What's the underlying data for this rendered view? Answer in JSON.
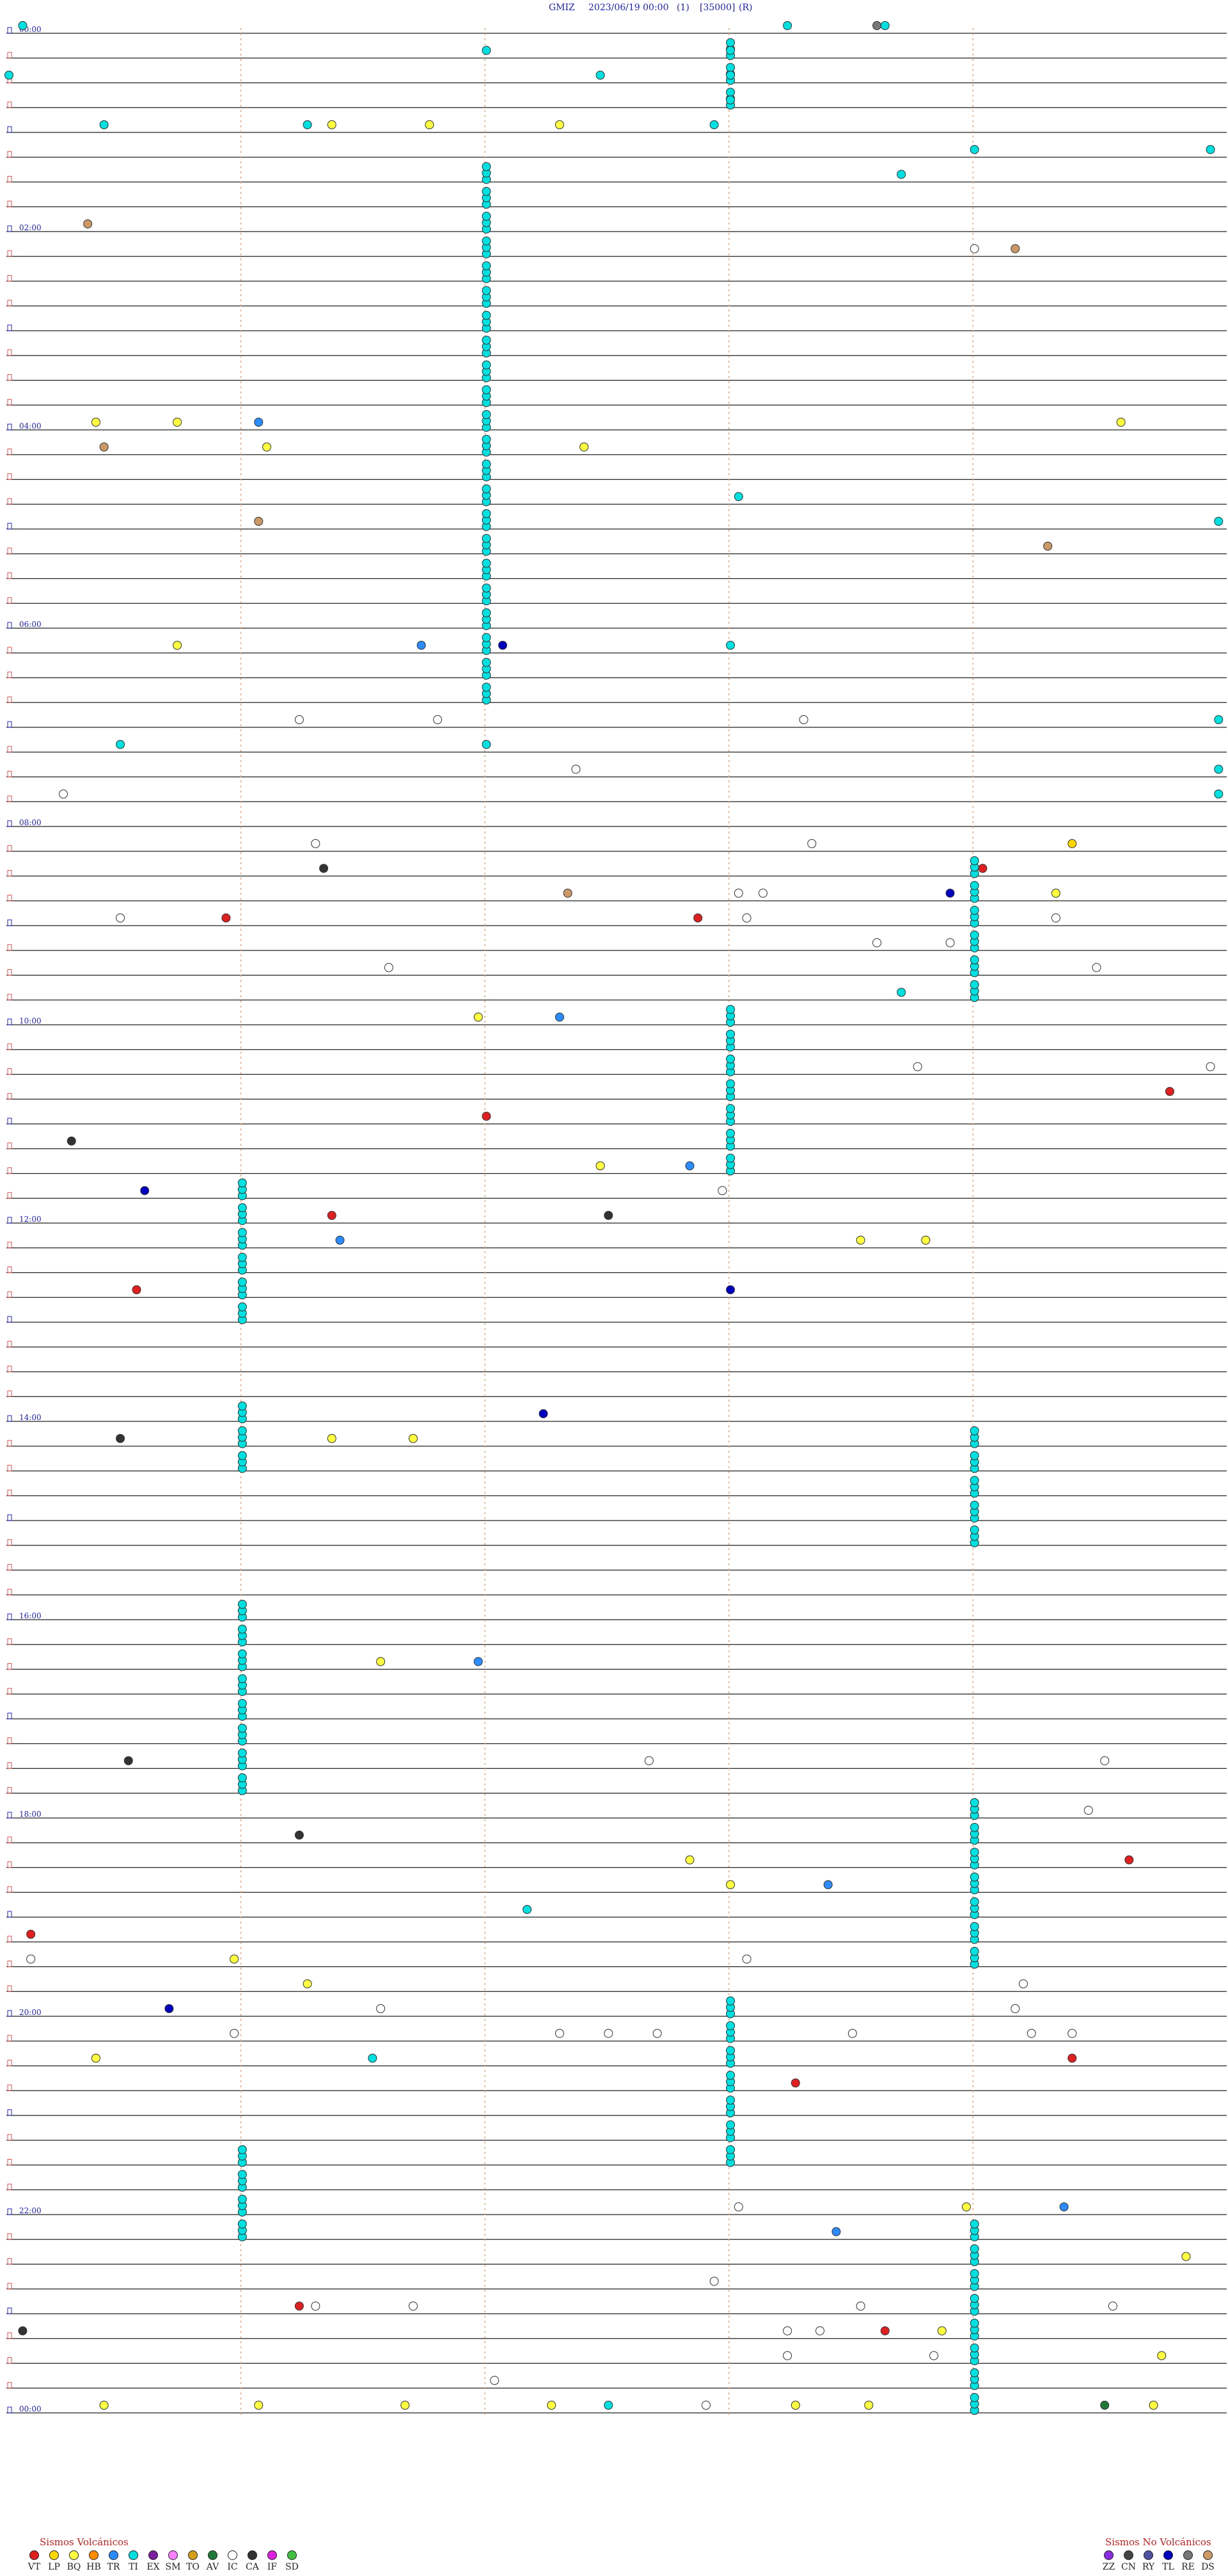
{
  "header": {
    "station": "GMIZ",
    "datetime": "2023/06/19 00:00",
    "channel": "(1)",
    "scale": "[35000]",
    "mode": "(R)"
  },
  "chart_data": {
    "type": "scatter",
    "rows_per_hour": 4,
    "total_rows": 97,
    "hour_labels": [
      {
        "row": 0,
        "text": "00:00"
      },
      {
        "row": 8,
        "text": "02:00"
      },
      {
        "row": 16,
        "text": "04:00"
      },
      {
        "row": 24,
        "text": "06:00"
      },
      {
        "row": 32,
        "text": "08:00"
      },
      {
        "row": 40,
        "text": "10:00"
      },
      {
        "row": 48,
        "text": "12:00"
      },
      {
        "row": 56,
        "text": "14:00"
      },
      {
        "row": 64,
        "text": "16:00"
      },
      {
        "row": 72,
        "text": "18:00"
      },
      {
        "row": 80,
        "text": "20:00"
      },
      {
        "row": 88,
        "text": "22:00"
      },
      {
        "row": 96,
        "text": "00:00"
      }
    ],
    "minute_markers": [
      3,
      6,
      9,
      12
    ],
    "colors": {
      "VT": "#e02020",
      "LP": "#ffd700",
      "BQ": "#ffff40",
      "HB": "#ff8c00",
      "TR": "#2a8cff",
      "TI": "#00e0e0",
      "EX": "#7a1fa0",
      "SM": "#ff80ff",
      "TO": "#d4a017",
      "AV": "#1f7a3a",
      "IC": "#ffffff",
      "CA": "#333333",
      "IF": "#e020e0",
      "SD": "#40c040",
      "ZZ": "#8a2be2",
      "CN": "#444444",
      "RY": "#5050a0",
      "TL": "#0000c0",
      "RE": "#777777",
      "DS": "#cc9966"
    },
    "events": [
      {
        "row": 0,
        "minute": 9.6,
        "type": "TI"
      },
      {
        "row": 0,
        "minute": 0.2,
        "type": "TI"
      },
      {
        "row": 0,
        "minute": 10.7,
        "type": "RE"
      },
      {
        "row": 0,
        "minute": 10.8,
        "type": "TI"
      },
      {
        "row": 1,
        "minute": 5.9,
        "type": "TI"
      },
      {
        "row": 1,
        "minute": 8.9,
        "type": "TI"
      },
      {
        "row": 2,
        "minute": 0.0,
        "type": "TI"
      },
      {
        "row": 2,
        "minute": 7.3,
        "type": "TI"
      },
      {
        "row": 2,
        "minute": 8.9,
        "type": "TI"
      },
      {
        "row": 3,
        "minute": 8.9,
        "type": "TI"
      },
      {
        "row": 4,
        "minute": 1.2,
        "type": "TI"
      },
      {
        "row": 4,
        "minute": 3.7,
        "type": "TI"
      },
      {
        "row": 4,
        "minute": 8.7,
        "type": "TI"
      },
      {
        "row": 5,
        "minute": 11.9,
        "type": "TI"
      },
      {
        "row": 5,
        "minute": 14.8,
        "type": "TI"
      },
      {
        "row": 4,
        "minute": 4.0,
        "type": "BQ"
      },
      {
        "row": 4,
        "minute": 5.2,
        "type": "BQ"
      },
      {
        "row": 4,
        "minute": 6.8,
        "type": "BQ"
      },
      {
        "row": 6,
        "minute": 11.0,
        "type": "TI"
      },
      {
        "row": 8,
        "minute": 1.0,
        "type": "DS"
      },
      {
        "row": 9,
        "minute": 11.9,
        "type": "IC"
      },
      {
        "row": 9,
        "minute": 12.4,
        "type": "DS"
      },
      {
        "row": 16,
        "minute": 1.1,
        "type": "BQ"
      },
      {
        "row": 16,
        "minute": 2.1,
        "type": "BQ"
      },
      {
        "row": 16,
        "minute": 3.1,
        "type": "TR"
      },
      {
        "row": 16,
        "minute": 13.7,
        "type": "BQ"
      },
      {
        "row": 17,
        "minute": 1.2,
        "type": "DS"
      },
      {
        "row": 17,
        "minute": 3.2,
        "type": "BQ"
      },
      {
        "row": 17,
        "minute": 7.1,
        "type": "BQ"
      },
      {
        "row": 19,
        "minute": 9.0,
        "type": "TI"
      },
      {
        "row": 20,
        "minute": 3.1,
        "type": "DS"
      },
      {
        "row": 20,
        "minute": 14.9,
        "type": "TI"
      },
      {
        "row": 21,
        "minute": 12.8,
        "type": "DS"
      },
      {
        "row": 25,
        "minute": 2.1,
        "type": "BQ"
      },
      {
        "row": 25,
        "minute": 5.1,
        "type": "TR"
      },
      {
        "row": 25,
        "minute": 6.1,
        "type": "TL"
      },
      {
        "row": 25,
        "minute": 8.9,
        "type": "TI"
      },
      {
        "row": 28,
        "minute": 3.6,
        "type": "IC"
      },
      {
        "row": 28,
        "minute": 5.3,
        "type": "IC"
      },
      {
        "row": 28,
        "minute": 9.8,
        "type": "IC"
      },
      {
        "row": 28,
        "minute": 14.9,
        "type": "TI"
      },
      {
        "row": 29,
        "minute": 1.4,
        "type": "TI"
      },
      {
        "row": 29,
        "minute": 5.9,
        "type": "TI"
      },
      {
        "row": 30,
        "minute": 7.0,
        "type": "IC"
      },
      {
        "row": 30,
        "minute": 14.9,
        "type": "TI"
      },
      {
        "row": 31,
        "minute": 0.7,
        "type": "IC"
      },
      {
        "row": 31,
        "minute": 14.9,
        "type": "TI"
      },
      {
        "row": 33,
        "minute": 3.8,
        "type": "IC"
      },
      {
        "row": 33,
        "minute": 9.9,
        "type": "IC"
      },
      {
        "row": 33,
        "minute": 13.1,
        "type": "LP"
      },
      {
        "row": 34,
        "minute": 3.9,
        "type": "CA"
      },
      {
        "row": 34,
        "minute": 12.0,
        "type": "VT"
      },
      {
        "row": 35,
        "minute": 6.9,
        "type": "DS"
      },
      {
        "row": 35,
        "minute": 9.0,
        "type": "IC"
      },
      {
        "row": 35,
        "minute": 9.3,
        "type": "IC"
      },
      {
        "row": 35,
        "minute": 11.6,
        "type": "TL"
      },
      {
        "row": 35,
        "minute": 12.9,
        "type": "BQ"
      },
      {
        "row": 36,
        "minute": 2.7,
        "type": "VT"
      },
      {
        "row": 36,
        "minute": 8.5,
        "type": "VT"
      },
      {
        "row": 36,
        "minute": 1.4,
        "type": "IC"
      },
      {
        "row": 36,
        "minute": 9.1,
        "type": "IC"
      },
      {
        "row": 36,
        "minute": 12.9,
        "type": "IC"
      },
      {
        "row": 37,
        "minute": 10.7,
        "type": "IC"
      },
      {
        "row": 37,
        "minute": 11.6,
        "type": "IC"
      },
      {
        "row": 38,
        "minute": 4.7,
        "type": "IC"
      },
      {
        "row": 38,
        "minute": 13.4,
        "type": "IC"
      },
      {
        "row": 39,
        "minute": 11.0,
        "type": "TI"
      },
      {
        "row": 40,
        "minute": 5.8,
        "type": "BQ"
      },
      {
        "row": 40,
        "minute": 6.8,
        "type": "TR"
      },
      {
        "row": 42,
        "minute": 11.2,
        "type": "IC"
      },
      {
        "row": 42,
        "minute": 14.8,
        "type": "IC"
      },
      {
        "row": 43,
        "minute": 14.3,
        "type": "VT"
      },
      {
        "row": 44,
        "minute": 5.9,
        "type": "VT"
      },
      {
        "row": 45,
        "minute": 0.8,
        "type": "CA"
      },
      {
        "row": 46,
        "minute": 7.3,
        "type": "BQ"
      },
      {
        "row": 46,
        "minute": 8.4,
        "type": "TR"
      },
      {
        "row": 47,
        "minute": 1.7,
        "type": "TL"
      },
      {
        "row": 47,
        "minute": 8.8,
        "type": "IC"
      },
      {
        "row": 48,
        "minute": 4.0,
        "type": "VT"
      },
      {
        "row": 48,
        "minute": 7.4,
        "type": "CA"
      },
      {
        "row": 49,
        "minute": 4.1,
        "type": "TR"
      },
      {
        "row": 49,
        "minute": 10.5,
        "type": "BQ"
      },
      {
        "row": 49,
        "minute": 11.3,
        "type": "BQ"
      },
      {
        "row": 51,
        "minute": 1.6,
        "type": "VT"
      },
      {
        "row": 51,
        "minute": 8.9,
        "type": "TL"
      },
      {
        "row": 56,
        "minute": 6.6,
        "type": "TL"
      },
      {
        "row": 57,
        "minute": 1.4,
        "type": "CA"
      },
      {
        "row": 57,
        "minute": 4.0,
        "type": "BQ"
      },
      {
        "row": 57,
        "minute": 5.0,
        "type": "BQ"
      },
      {
        "row": 66,
        "minute": 4.6,
        "type": "BQ"
      },
      {
        "row": 66,
        "minute": 5.8,
        "type": "TR"
      },
      {
        "row": 70,
        "minute": 1.5,
        "type": "CA"
      },
      {
        "row": 70,
        "minute": 7.9,
        "type": "IC"
      },
      {
        "row": 70,
        "minute": 13.5,
        "type": "IC"
      },
      {
        "row": 72,
        "minute": 13.3,
        "type": "IC"
      },
      {
        "row": 73,
        "minute": 3.6,
        "type": "CA"
      },
      {
        "row": 74,
        "minute": 8.4,
        "type": "BQ"
      },
      {
        "row": 74,
        "minute": 13.8,
        "type": "VT"
      },
      {
        "row": 75,
        "minute": 8.9,
        "type": "BQ"
      },
      {
        "row": 75,
        "minute": 10.1,
        "type": "TR"
      },
      {
        "row": 76,
        "minute": 6.4,
        "type": "TI"
      },
      {
        "row": 77,
        "minute": 0.3,
        "type": "VT"
      },
      {
        "row": 78,
        "minute": 0.3,
        "type": "IC"
      },
      {
        "row": 78,
        "minute": 2.8,
        "type": "BQ"
      },
      {
        "row": 78,
        "minute": 9.1,
        "type": "IC"
      },
      {
        "row": 79,
        "minute": 3.7,
        "type": "BQ"
      },
      {
        "row": 79,
        "minute": 12.5,
        "type": "IC"
      },
      {
        "row": 80,
        "minute": 2.0,
        "type": "TL"
      },
      {
        "row": 80,
        "minute": 4.6,
        "type": "IC"
      },
      {
        "row": 80,
        "minute": 12.4,
        "type": "IC"
      },
      {
        "row": 81,
        "minute": 2.8,
        "type": "IC"
      },
      {
        "row": 81,
        "minute": 6.8,
        "type": "IC"
      },
      {
        "row": 81,
        "minute": 7.4,
        "type": "IC"
      },
      {
        "row": 81,
        "minute": 8.0,
        "type": "IC"
      },
      {
        "row": 81,
        "minute": 10.4,
        "type": "IC"
      },
      {
        "row": 81,
        "minute": 12.6,
        "type": "IC"
      },
      {
        "row": 81,
        "minute": 13.1,
        "type": "IC"
      },
      {
        "row": 82,
        "minute": 1.1,
        "type": "BQ"
      },
      {
        "row": 82,
        "minute": 4.5,
        "type": "TI"
      },
      {
        "row": 82,
        "minute": 13.1,
        "type": "VT"
      },
      {
        "row": 83,
        "minute": 9.7,
        "type": "VT"
      },
      {
        "row": 88,
        "minute": 9.0,
        "type": "IC"
      },
      {
        "row": 88,
        "minute": 11.8,
        "type": "BQ"
      },
      {
        "row": 88,
        "minute": 13.0,
        "type": "TR"
      },
      {
        "row": 89,
        "minute": 10.2,
        "type": "TR"
      },
      {
        "row": 90,
        "minute": 14.5,
        "type": "BQ"
      },
      {
        "row": 91,
        "minute": 8.7,
        "type": "IC"
      },
      {
        "row": 92,
        "minute": 3.8,
        "type": "IC"
      },
      {
        "row": 92,
        "minute": 5.0,
        "type": "IC"
      },
      {
        "row": 92,
        "minute": 10.5,
        "type": "IC"
      },
      {
        "row": 92,
        "minute": 3.6,
        "type": "VT"
      },
      {
        "row": 92,
        "minute": 13.6,
        "type": "IC"
      },
      {
        "row": 93,
        "minute": 0.2,
        "type": "CA"
      },
      {
        "row": 93,
        "minute": 10.8,
        "type": "VT"
      },
      {
        "row": 93,
        "minute": 11.5,
        "type": "BQ"
      },
      {
        "row": 93,
        "minute": 9.6,
        "type": "IC"
      },
      {
        "row": 93,
        "minute": 10.0,
        "type": "IC"
      },
      {
        "row": 94,
        "minute": 9.6,
        "type": "IC"
      },
      {
        "row": 94,
        "minute": 11.4,
        "type": "IC"
      },
      {
        "row": 94,
        "minute": 14.2,
        "type": "BQ"
      },
      {
        "row": 95,
        "minute": 6.0,
        "type": "IC"
      },
      {
        "row": 96,
        "minute": 1.2,
        "type": "BQ"
      },
      {
        "row": 96,
        "minute": 3.1,
        "type": "BQ"
      },
      {
        "row": 96,
        "minute": 4.9,
        "type": "BQ"
      },
      {
        "row": 96,
        "minute": 6.7,
        "type": "BQ"
      },
      {
        "row": 96,
        "minute": 7.4,
        "type": "TI"
      },
      {
        "row": 96,
        "minute": 8.6,
        "type": "IC"
      },
      {
        "row": 96,
        "minute": 9.7,
        "type": "BQ"
      },
      {
        "row": 96,
        "minute": 10.6,
        "type": "BQ"
      },
      {
        "row": 96,
        "minute": 13.5,
        "type": "AV"
      },
      {
        "row": 96,
        "minute": 14.1,
        "type": "BQ"
      }
    ],
    "clusters": [
      {
        "minute": 5.9,
        "type": "TI",
        "rows": [
          6,
          7,
          8,
          9,
          10,
          11,
          12,
          13,
          14,
          15,
          16,
          17,
          18,
          19,
          20,
          21,
          22,
          23,
          24,
          25,
          26,
          27
        ]
      },
      {
        "minute": 8.9,
        "type": "TI",
        "rows": [
          1,
          2,
          3
        ]
      },
      {
        "minute": 11.9,
        "type": "TI",
        "rows": [
          34,
          35,
          36,
          37,
          38,
          39
        ]
      },
      {
        "minute": 8.9,
        "type": "TI",
        "rows": [
          40,
          41,
          42,
          43,
          44,
          45,
          46
        ]
      },
      {
        "minute": 2.9,
        "type": "TI",
        "rows": [
          47,
          48,
          49,
          50,
          51,
          52
        ]
      },
      {
        "minute": 11.9,
        "type": "TI",
        "rows": [
          57,
          58,
          59,
          60,
          61
        ]
      },
      {
        "minute": 2.9,
        "type": "TI",
        "rows": [
          56,
          57,
          58
        ]
      },
      {
        "minute": 2.9,
        "type": "TI",
        "rows": [
          64,
          65,
          66,
          67,
          68,
          69,
          70,
          71
        ]
      },
      {
        "minute": 11.9,
        "type": "TI",
        "rows": [
          72,
          73,
          74,
          75,
          76,
          77,
          78
        ]
      },
      {
        "minute": 8.9,
        "type": "TI",
        "rows": [
          80,
          81,
          82,
          83,
          84,
          85,
          86
        ]
      },
      {
        "minute": 2.9,
        "type": "TI",
        "rows": [
          86,
          87,
          88,
          89
        ]
      },
      {
        "minute": 11.9,
        "type": "TI",
        "rows": [
          89,
          90,
          91,
          92,
          93,
          94,
          95,
          96
        ]
      }
    ]
  },
  "legend_volcanic": {
    "title": "Sismos Volcánicos",
    "items": [
      "VT",
      "LP",
      "BQ",
      "HB",
      "TR",
      "TI",
      "EX",
      "SM",
      "TO",
      "AV",
      "IC",
      "CA",
      "IF",
      "SD"
    ]
  },
  "legend_non_volcanic": {
    "title": "Sismos No Volcánicos",
    "items": [
      "ZZ",
      "CN",
      "RY",
      "TL",
      "RE",
      "DS"
    ]
  }
}
